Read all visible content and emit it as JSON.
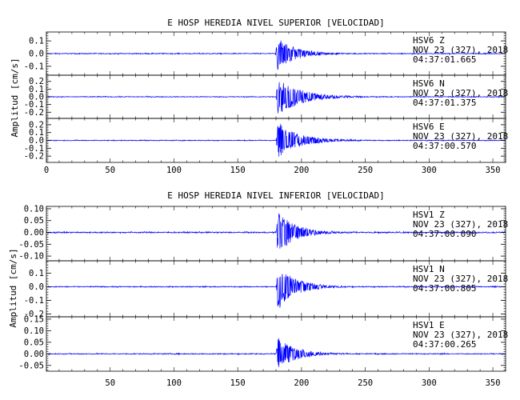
{
  "chart_data": [
    {
      "type": "line",
      "title": "E HOSP HEREDIA NIVEL SUPERIOR [VELOCIDAD]",
      "ylabel": "Amplitud [cm/s]",
      "xlabel": "",
      "xlim": [
        0,
        360
      ],
      "xticks": [
        0,
        50,
        100,
        150,
        200,
        250,
        300,
        350
      ],
      "line_color": "#0000ff",
      "traces": [
        {
          "station": "HSV6",
          "component": "Z",
          "date": "NOV 23 (327), 2018",
          "time": "04:37:01.665",
          "ylim": [
            -0.17,
            0.17
          ],
          "yticks": [
            -0.1,
            0.0,
            0.1
          ],
          "ytick_labels": [
            "-0.1",
            "0.0",
            "0.1"
          ],
          "onset_s": 179.5,
          "peak_amp": 0.13,
          "decay_s": 14,
          "noise": 0.002
        },
        {
          "station": "HSV6",
          "component": "N",
          "date": "NOV 23 (327), 2018",
          "time": "04:37:01.375",
          "ylim": [
            -0.28,
            0.28
          ],
          "yticks": [
            -0.2,
            -0.1,
            0.0,
            0.1,
            0.2
          ],
          "ytick_labels": [
            "-0.2",
            "-0.1",
            "0.0",
            "0.1",
            "0.2"
          ],
          "onset_s": 180,
          "peak_amp": 0.24,
          "decay_s": 18,
          "noise": 0.003
        },
        {
          "station": "HSV6",
          "component": "E",
          "date": "NOV 23 (327), 2018",
          "time": "04:37:00.570",
          "ylim": [
            -0.28,
            0.28
          ],
          "yticks": [
            -0.2,
            -0.1,
            0.0,
            0.1,
            0.2
          ],
          "ytick_labels": [
            "-0.2",
            "-0.1",
            "0.0",
            "0.1",
            "0.2"
          ],
          "onset_s": 180,
          "peak_amp": 0.24,
          "decay_s": 16,
          "noise": 0.003
        }
      ]
    },
    {
      "type": "line",
      "title": "E HOSP HEREDIA NIVEL INFERIOR [VELOCIDAD]",
      "ylabel": "Amplitud [cm/s]",
      "xlabel": "",
      "xlim": [
        0,
        360
      ],
      "xticks": [
        50,
        100,
        150,
        200,
        250,
        300,
        350
      ],
      "line_color": "#0000ff",
      "traces": [
        {
          "station": "HSV1",
          "component": "Z",
          "date": "NOV 23 (327), 2018",
          "time": "04:37:00.090",
          "ylim": [
            -0.12,
            0.11
          ],
          "yticks": [
            -0.1,
            -0.05,
            0.0,
            0.05,
            0.1
          ],
          "ytick_labels": [
            "-0.10",
            "-0.05",
            "0.00",
            "0.05",
            "0.10"
          ],
          "onset_s": 180,
          "peak_amp": 0.09,
          "decay_s": 14,
          "noise": 0.0015
        },
        {
          "station": "HSV1",
          "component": "N",
          "date": "NOV 23 (327), 2018",
          "time": "04:37:00.805",
          "ylim": [
            -0.22,
            0.19
          ],
          "yticks": [
            -0.2,
            -0.1,
            0.0,
            0.1
          ],
          "ytick_labels": [
            "-0.2",
            "-0.1",
            "0.0",
            "0.1"
          ],
          "onset_s": 180,
          "peak_amp": 0.17,
          "decay_s": 14,
          "noise": 0.002
        },
        {
          "station": "HSV1",
          "component": "E",
          "date": "NOV 23 (327), 2018",
          "time": "04:37:00.265",
          "ylim": [
            -0.075,
            0.16
          ],
          "yticks": [
            -0.05,
            0.0,
            0.05,
            0.1,
            0.15
          ],
          "ytick_labels": [
            "-0.05",
            "0.00",
            "0.05",
            "0.10",
            "0.15"
          ],
          "onset_s": 180,
          "peak_amp": 0.07,
          "decay_s": 14,
          "noise": 0.0012
        }
      ]
    }
  ]
}
